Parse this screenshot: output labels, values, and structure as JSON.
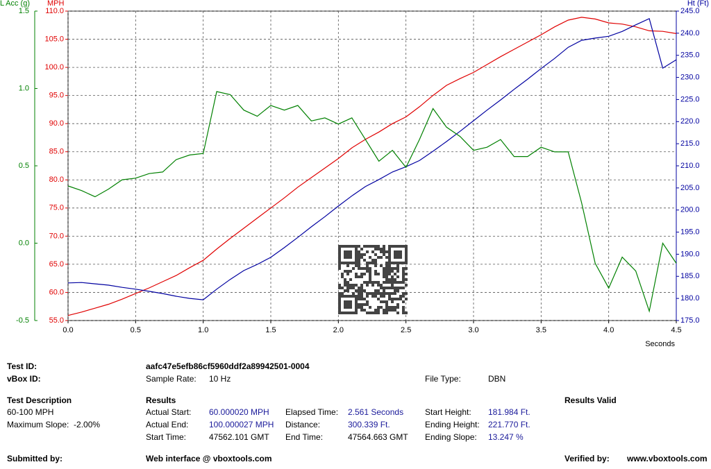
{
  "chart_data": {
    "type": "line",
    "xlabel": "Seconds",
    "ylabel": "MPH",
    "y2label": "Ht (Ft)",
    "y3label": "L Acc (g)",
    "x": [
      0,
      0.1,
      0.2,
      0.3,
      0.4,
      0.5,
      0.6,
      0.7,
      0.8,
      0.9,
      1.0,
      1.1,
      1.2,
      1.3,
      1.4,
      1.5,
      1.6,
      1.7,
      1.8,
      1.9,
      2.0,
      2.1,
      2.2,
      2.3,
      2.4,
      2.5,
      2.6,
      2.7,
      2.8,
      2.9,
      3.0,
      3.1,
      3.2,
      3.3,
      3.4,
      3.5,
      3.6,
      3.7,
      3.8,
      3.9,
      4.0,
      4.1,
      4.2,
      4.3,
      4.4,
      4.5
    ],
    "xlim": [
      0,
      4.5
    ],
    "xticks": [
      {
        "value": 0,
        "label": "0.0"
      },
      0.5,
      {
        "value": 1,
        "label": "1.0"
      },
      1.5,
      {
        "value": 2,
        "label": "2.0"
      },
      2.5,
      {
        "value": 3,
        "label": "3.0"
      },
      3.5,
      {
        "value": 4,
        "label": "4.0"
      },
      4.5
    ],
    "ylim": [
      55,
      110
    ],
    "yticks": [
      {
        "value": 55,
        "label": "55.0"
      },
      {
        "value": 60,
        "label": "60.0"
      },
      {
        "value": 65,
        "label": "65.0"
      },
      {
        "value": 70,
        "label": "70.0"
      },
      {
        "value": 75,
        "label": "75.0"
      },
      {
        "value": 80,
        "label": "80.0"
      },
      {
        "value": 85,
        "label": "85.0"
      },
      {
        "value": 90,
        "label": "90.0"
      },
      {
        "value": 95,
        "label": "95.0"
      },
      {
        "value": 100,
        "label": "100.0"
      },
      {
        "value": 105,
        "label": "105.0"
      },
      {
        "value": 110,
        "label": "110.0"
      }
    ],
    "y2lim": [
      175,
      245
    ],
    "y2ticks": [
      {
        "value": 175,
        "label": "175.0"
      },
      {
        "value": 180,
        "label": "180.0"
      },
      {
        "value": 185,
        "label": "185.0"
      },
      {
        "value": 190,
        "label": "190.0"
      },
      {
        "value": 195,
        "label": "195.0"
      },
      {
        "value": 200,
        "label": "200.0"
      },
      {
        "value": 205,
        "label": "205.0"
      },
      {
        "value": 210,
        "label": "210.0"
      },
      {
        "value": 215,
        "label": "215.0"
      },
      {
        "value": 220,
        "label": "220.0"
      },
      {
        "value": 225,
        "label": "225.0"
      },
      {
        "value": 230,
        "label": "230.0"
      },
      {
        "value": 235,
        "label": "235.0"
      },
      {
        "value": 240,
        "label": "240.0"
      },
      {
        "value": 245,
        "label": "245.0"
      }
    ],
    "y3lim": [
      -0.5,
      1.5
    ],
    "y3ticks": [
      -0.5,
      {
        "value": 0,
        "label": "0.0"
      },
      0.5,
      {
        "value": 1,
        "label": "1.0"
      },
      1.5
    ],
    "grid": true,
    "series": [
      {
        "name": "MPH",
        "color": "#e00000",
        "axis": "y",
        "values": [
          55.9,
          56.5,
          57.2,
          57.9,
          58.8,
          59.8,
          60.8,
          61.9,
          63.0,
          64.4,
          65.7,
          67.7,
          69.6,
          71.4,
          73.2,
          75.0,
          76.8,
          78.7,
          80.4,
          82.1,
          83.8,
          85.7,
          87.2,
          88.5,
          90.0,
          91.2,
          93.0,
          95.0,
          96.8,
          98.0,
          99.1,
          100.5,
          101.9,
          103.2,
          104.5,
          105.8,
          107.2,
          108.4,
          108.9,
          108.6,
          107.9,
          107.7,
          107.2,
          106.5,
          106.4,
          106.0
        ]
      },
      {
        "name": "Ht (Ft)",
        "color": "#0000a0",
        "axis": "y2",
        "values": [
          183.5,
          183.6,
          183.3,
          183.0,
          182.5,
          182.1,
          181.6,
          181.1,
          180.5,
          180.0,
          179.7,
          182.1,
          184.3,
          186.3,
          187.7,
          189.3,
          191.5,
          193.8,
          196.2,
          198.5,
          200.9,
          203.2,
          205.3,
          206.9,
          208.6,
          209.8,
          211.2,
          213.3,
          215.5,
          217.8,
          220.2,
          222.6,
          224.9,
          227.3,
          229.6,
          232.0,
          234.3,
          236.8,
          238.4,
          238.9,
          239.3,
          240.4,
          241.9,
          243.3,
          232.1,
          234.0
        ]
      },
      {
        "name": "L Acc (g)",
        "color": "#008000",
        "axis": "y3",
        "values": [
          0.37,
          0.34,
          0.3,
          0.35,
          0.41,
          0.42,
          0.45,
          0.46,
          0.54,
          0.57,
          0.58,
          0.98,
          0.96,
          0.86,
          0.82,
          0.89,
          0.86,
          0.89,
          0.79,
          0.81,
          0.77,
          0.81,
          0.67,
          0.53,
          0.6,
          0.49,
          0.67,
          0.87,
          0.75,
          0.69,
          0.6,
          0.62,
          0.67,
          0.56,
          0.56,
          0.62,
          0.59,
          0.59,
          0.26,
          -0.13,
          -0.29,
          -0.09,
          -0.18,
          -0.44,
          0.0,
          -0.13
        ]
      }
    ]
  },
  "info": {
    "fields": [
      {
        "label": "Test ID:",
        "value": "aafc47e5efb86cf5960ddf2a89942501-0004"
      },
      {
        "label": "vBox ID:"
      },
      {
        "label": "Sample Rate:",
        "value": "10 Hz"
      },
      {
        "label": "File Type:",
        "value": "DBN"
      },
      {
        "label": "Test Description"
      },
      {
        "label": "60-100 MPH"
      },
      {
        "label": "Maximum Slope:  -2.00%"
      },
      {
        "label": "Results"
      },
      {
        "label": "Actual Start:",
        "value": "60.000020 MPH"
      },
      {
        "label": "Actual End:",
        "value": "100.000027 MPH"
      },
      {
        "label": "Start Time:",
        "value": "47562.101 GMT"
      },
      {
        "label": "Elapsed Time:",
        "value": "2.561 Seconds"
      },
      {
        "label": "Distance:",
        "value": "300.339 Ft."
      },
      {
        "label": "End Time:",
        "value": "47564.663 GMT"
      },
      {
        "label": "Start Height:",
        "value": "181.984 Ft."
      },
      {
        "label": "Ending Height:",
        "value": "221.770 Ft."
      },
      {
        "label": "Ending Slope:",
        "value": "13.247 %"
      },
      {
        "label": "Results Valid"
      },
      {
        "label": "Submitted by:"
      },
      {
        "label": "Web interface @ vboxtools.com"
      },
      {
        "label": "Verified by:"
      },
      {
        "label": "www.vboxtools.com"
      }
    ]
  }
}
